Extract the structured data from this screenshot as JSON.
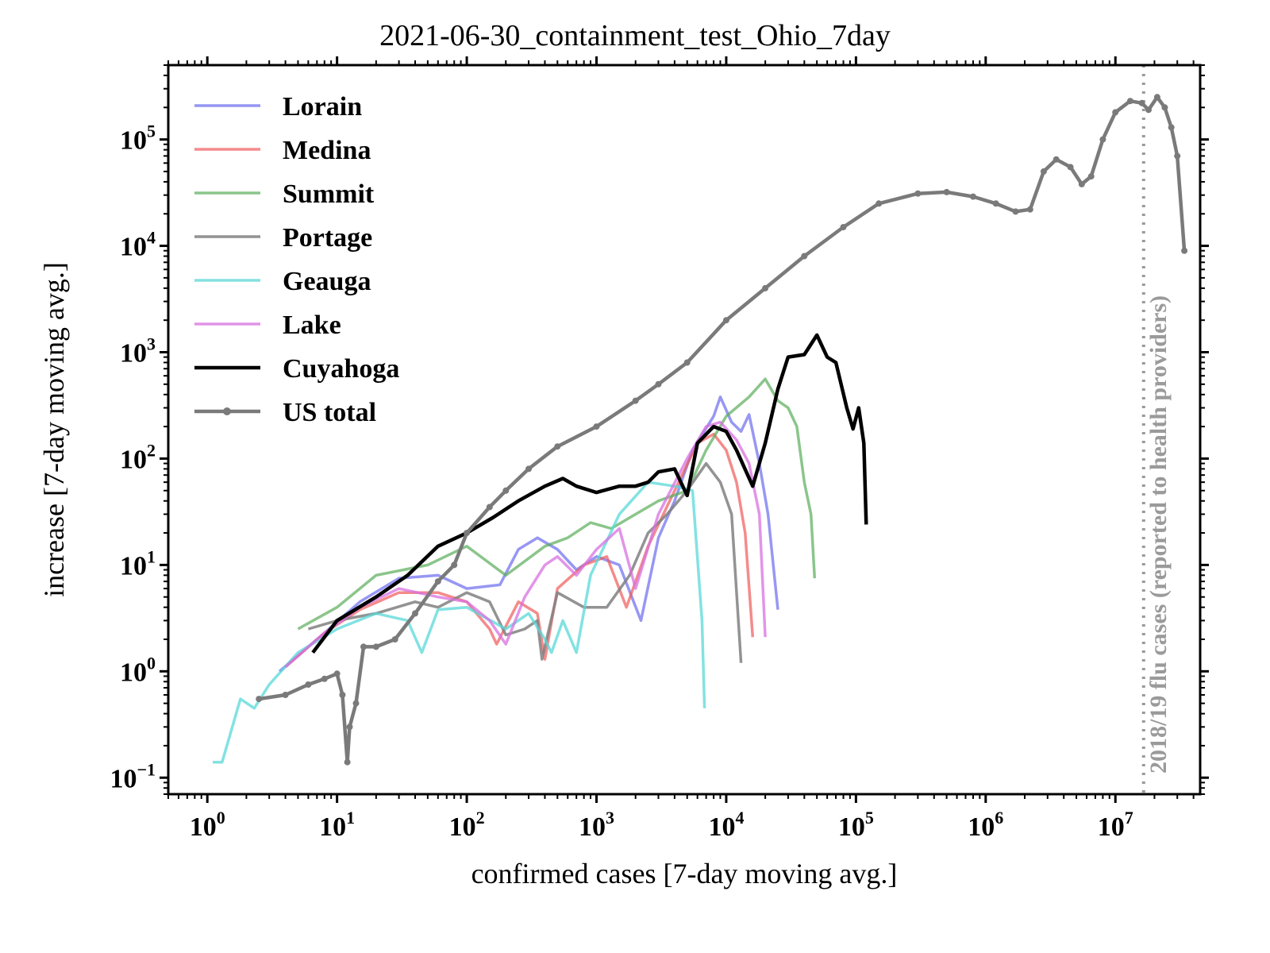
{
  "chart_data": {
    "type": "line",
    "title": "2021-06-30_containment_test_Ohio_7day",
    "xlabel": "confirmed cases [7-day moving avg.]",
    "ylabel": "increase [7-day moving avg.]",
    "xscale": "log",
    "yscale": "log",
    "xlim": [
      0.5,
      45000000
    ],
    "ylim": [
      0.07,
      500000
    ],
    "grid": false,
    "legend_position": "top-left",
    "x_ticks": [
      {
        "base": "10",
        "exp": "0",
        "value": 1
      },
      {
        "base": "10",
        "exp": "1",
        "value": 10
      },
      {
        "base": "10",
        "exp": "2",
        "value": 100
      },
      {
        "base": "10",
        "exp": "3",
        "value": 1000
      },
      {
        "base": "10",
        "exp": "4",
        "value": 10000
      },
      {
        "base": "10",
        "exp": "5",
        "value": 100000
      },
      {
        "base": "10",
        "exp": "6",
        "value": 1000000
      },
      {
        "base": "10",
        "exp": "7",
        "value": 10000000
      }
    ],
    "y_ticks": [
      {
        "base": "10",
        "exp": "−1",
        "value": 0.1
      },
      {
        "base": "10",
        "exp": "0",
        "value": 1
      },
      {
        "base": "10",
        "exp": "1",
        "value": 10
      },
      {
        "base": "10",
        "exp": "2",
        "value": 100
      },
      {
        "base": "10",
        "exp": "3",
        "value": 1000
      },
      {
        "base": "10",
        "exp": "4",
        "value": 10000
      },
      {
        "base": "10",
        "exp": "5",
        "value": 100000
      }
    ],
    "reference_line": {
      "x": 16500000,
      "label": "2018/19 flu cases (reported to health providers)",
      "color": "#999999"
    },
    "series": [
      {
        "name": "Lorain",
        "color": "#6b6bf0",
        "opacity": 0.7,
        "width": 3.5,
        "markers": false,
        "points": [
          [
            3.6,
            1.0
          ],
          [
            8,
            2.3
          ],
          [
            15,
            4.5
          ],
          [
            30,
            7.5
          ],
          [
            60,
            8.0
          ],
          [
            100,
            6.0
          ],
          [
            180,
            6.5
          ],
          [
            250,
            14
          ],
          [
            350,
            18
          ],
          [
            500,
            14
          ],
          [
            700,
            9
          ],
          [
            1000,
            12
          ],
          [
            1500,
            10
          ],
          [
            2200,
            3
          ],
          [
            3000,
            18
          ],
          [
            4000,
            40
          ],
          [
            5500,
            120
          ],
          [
            8000,
            250
          ],
          [
            9000,
            380
          ],
          [
            11000,
            220
          ],
          [
            13000,
            180
          ],
          [
            15000,
            260
          ],
          [
            18000,
            90
          ],
          [
            21000,
            30
          ],
          [
            25000,
            3.8
          ]
        ]
      },
      {
        "name": "Medina",
        "color": "#f05a5a",
        "opacity": 0.7,
        "width": 3.5,
        "markers": false,
        "points": [
          [
            4,
            1.1
          ],
          [
            8,
            2.3
          ],
          [
            15,
            3.8
          ],
          [
            30,
            5.5
          ],
          [
            60,
            5.5
          ],
          [
            100,
            4.5
          ],
          [
            150,
            2.5
          ],
          [
            170,
            1.8
          ],
          [
            250,
            4.5
          ],
          [
            350,
            3.5
          ],
          [
            400,
            1.3
          ],
          [
            500,
            6
          ],
          [
            800,
            10
          ],
          [
            1200,
            12
          ],
          [
            1700,
            4
          ],
          [
            2500,
            15
          ],
          [
            4000,
            50
          ],
          [
            6000,
            140
          ],
          [
            8000,
            170
          ],
          [
            10000,
            120
          ],
          [
            12000,
            60
          ],
          [
            14000,
            20
          ],
          [
            16000,
            2.1
          ]
        ]
      },
      {
        "name": "Summit",
        "color": "#5aad5a",
        "opacity": 0.7,
        "width": 3.5,
        "markers": false,
        "points": [
          [
            5,
            2.5
          ],
          [
            10,
            4.0
          ],
          [
            20,
            8
          ],
          [
            50,
            10
          ],
          [
            100,
            15
          ],
          [
            200,
            8
          ],
          [
            400,
            15
          ],
          [
            600,
            18
          ],
          [
            900,
            25
          ],
          [
            1300,
            22
          ],
          [
            2000,
            30
          ],
          [
            3000,
            40
          ],
          [
            5000,
            50
          ],
          [
            7000,
            120
          ],
          [
            10000,
            250
          ],
          [
            15000,
            380
          ],
          [
            20000,
            560
          ],
          [
            25000,
            350
          ],
          [
            30000,
            300
          ],
          [
            35000,
            200
          ],
          [
            40000,
            60
          ],
          [
            45000,
            30
          ],
          [
            48000,
            7.5
          ]
        ]
      },
      {
        "name": "Portage",
        "color": "#808080",
        "opacity": 0.85,
        "width": 3.5,
        "markers": false,
        "points": [
          [
            6,
            2.5
          ],
          [
            10,
            3.0
          ],
          [
            20,
            3.5
          ],
          [
            40,
            4.5
          ],
          [
            60,
            4.0
          ],
          [
            100,
            5.5
          ],
          [
            150,
            4.5
          ],
          [
            200,
            2.2
          ],
          [
            280,
            2.5
          ],
          [
            350,
            3.0
          ],
          [
            380,
            1.3
          ],
          [
            500,
            5.5
          ],
          [
            800,
            4.0
          ],
          [
            1200,
            4.0
          ],
          [
            1800,
            8
          ],
          [
            2500,
            20
          ],
          [
            3500,
            30
          ],
          [
            5000,
            50
          ],
          [
            7000,
            90
          ],
          [
            9000,
            60
          ],
          [
            11000,
            30
          ],
          [
            13000,
            1.2
          ]
        ]
      },
      {
        "name": "Geauga",
        "color": "#5ad8d8",
        "opacity": 0.75,
        "width": 3.5,
        "markers": false,
        "points": [
          [
            1.1,
            0.14
          ],
          [
            1.3,
            0.14
          ],
          [
            1.8,
            0.55
          ],
          [
            2.3,
            0.45
          ],
          [
            3,
            0.75
          ],
          [
            5,
            1.5
          ],
          [
            10,
            2.5
          ],
          [
            20,
            3.5
          ],
          [
            35,
            3.0
          ],
          [
            45,
            1.5
          ],
          [
            60,
            3.8
          ],
          [
            100,
            4.0
          ],
          [
            200,
            2.5
          ],
          [
            300,
            3.5
          ],
          [
            400,
            2.0
          ],
          [
            450,
            1.5
          ],
          [
            550,
            3.0
          ],
          [
            700,
            1.5
          ],
          [
            900,
            8
          ],
          [
            1500,
            30
          ],
          [
            2500,
            60
          ],
          [
            4000,
            55
          ],
          [
            5500,
            50
          ],
          [
            6500,
            3
          ],
          [
            6800,
            0.45
          ]
        ]
      },
      {
        "name": "Lake",
        "color": "#d870e0",
        "opacity": 0.75,
        "width": 3.5,
        "markers": false,
        "points": [
          [
            4,
            1.1
          ],
          [
            8,
            2.3
          ],
          [
            15,
            4.0
          ],
          [
            30,
            6.0
          ],
          [
            60,
            5.0
          ],
          [
            100,
            4.5
          ],
          [
            150,
            3.0
          ],
          [
            200,
            1.8
          ],
          [
            280,
            5.0
          ],
          [
            400,
            10
          ],
          [
            500,
            12
          ],
          [
            700,
            8
          ],
          [
            1000,
            14
          ],
          [
            1500,
            22
          ],
          [
            2000,
            6
          ],
          [
            3000,
            30
          ],
          [
            5000,
            100
          ],
          [
            7000,
            200
          ],
          [
            9000,
            220
          ],
          [
            12000,
            150
          ],
          [
            15000,
            90
          ],
          [
            18000,
            30
          ],
          [
            20000,
            2.1
          ]
        ]
      },
      {
        "name": "Cuyahoga",
        "color": "#000000",
        "opacity": 1.0,
        "width": 4.5,
        "markers": false,
        "points": [
          [
            6.5,
            1.5
          ],
          [
            10,
            3.0
          ],
          [
            20,
            5.0
          ],
          [
            35,
            8.0
          ],
          [
            60,
            15
          ],
          [
            100,
            20
          ],
          [
            160,
            28
          ],
          [
            250,
            40
          ],
          [
            400,
            55
          ],
          [
            550,
            65
          ],
          [
            700,
            55
          ],
          [
            1000,
            48
          ],
          [
            1500,
            55
          ],
          [
            2000,
            55
          ],
          [
            2500,
            60
          ],
          [
            3000,
            75
          ],
          [
            4000,
            80
          ],
          [
            5000,
            45
          ],
          [
            6000,
            140
          ],
          [
            8000,
            200
          ],
          [
            10000,
            180
          ],
          [
            12000,
            120
          ],
          [
            16000,
            55
          ],
          [
            20000,
            140
          ],
          [
            25000,
            450
          ],
          [
            30000,
            900
          ],
          [
            40000,
            950
          ],
          [
            50000,
            1450
          ],
          [
            60000,
            900
          ],
          [
            70000,
            800
          ],
          [
            85000,
            300
          ],
          [
            95000,
            190
          ],
          [
            105000,
            300
          ],
          [
            115000,
            140
          ],
          [
            120000,
            24
          ]
        ]
      },
      {
        "name": "US total",
        "color": "#7a7a7a",
        "opacity": 1.0,
        "width": 4.5,
        "markers": true,
        "points": [
          [
            2.5,
            0.55
          ],
          [
            4,
            0.6
          ],
          [
            6,
            0.75
          ],
          [
            8,
            0.85
          ],
          [
            10,
            0.95
          ],
          [
            11,
            0.6
          ],
          [
            12,
            0.14
          ],
          [
            12.5,
            0.3
          ],
          [
            14,
            0.5
          ],
          [
            16,
            1.7
          ],
          [
            20,
            1.7
          ],
          [
            28,
            2.0
          ],
          [
            40,
            3.5
          ],
          [
            60,
            7
          ],
          [
            80,
            10
          ],
          [
            100,
            20
          ],
          [
            150,
            35
          ],
          [
            200,
            50
          ],
          [
            300,
            80
          ],
          [
            500,
            130
          ],
          [
            1000,
            200
          ],
          [
            2000,
            350
          ],
          [
            3000,
            500
          ],
          [
            5000,
            800
          ],
          [
            10000,
            2000
          ],
          [
            20000,
            4000
          ],
          [
            40000,
            8000
          ],
          [
            80000,
            15000
          ],
          [
            150000,
            25000
          ],
          [
            300000,
            31000
          ],
          [
            500000,
            32000
          ],
          [
            800000,
            29000
          ],
          [
            1200000,
            25000
          ],
          [
            1700000,
            21000
          ],
          [
            2200000,
            22000
          ],
          [
            2800000,
            50000
          ],
          [
            3500000,
            65000
          ],
          [
            4500000,
            55000
          ],
          [
            5500000,
            38000
          ],
          [
            6500000,
            45000
          ],
          [
            8000000,
            100000
          ],
          [
            10000000,
            180000
          ],
          [
            13000000,
            230000
          ],
          [
            16000000,
            220000
          ],
          [
            18000000,
            190000
          ],
          [
            21000000,
            250000
          ],
          [
            24000000,
            200000
          ],
          [
            27000000,
            130000
          ],
          [
            30000000,
            70000
          ],
          [
            34000000,
            9000
          ]
        ]
      }
    ]
  }
}
